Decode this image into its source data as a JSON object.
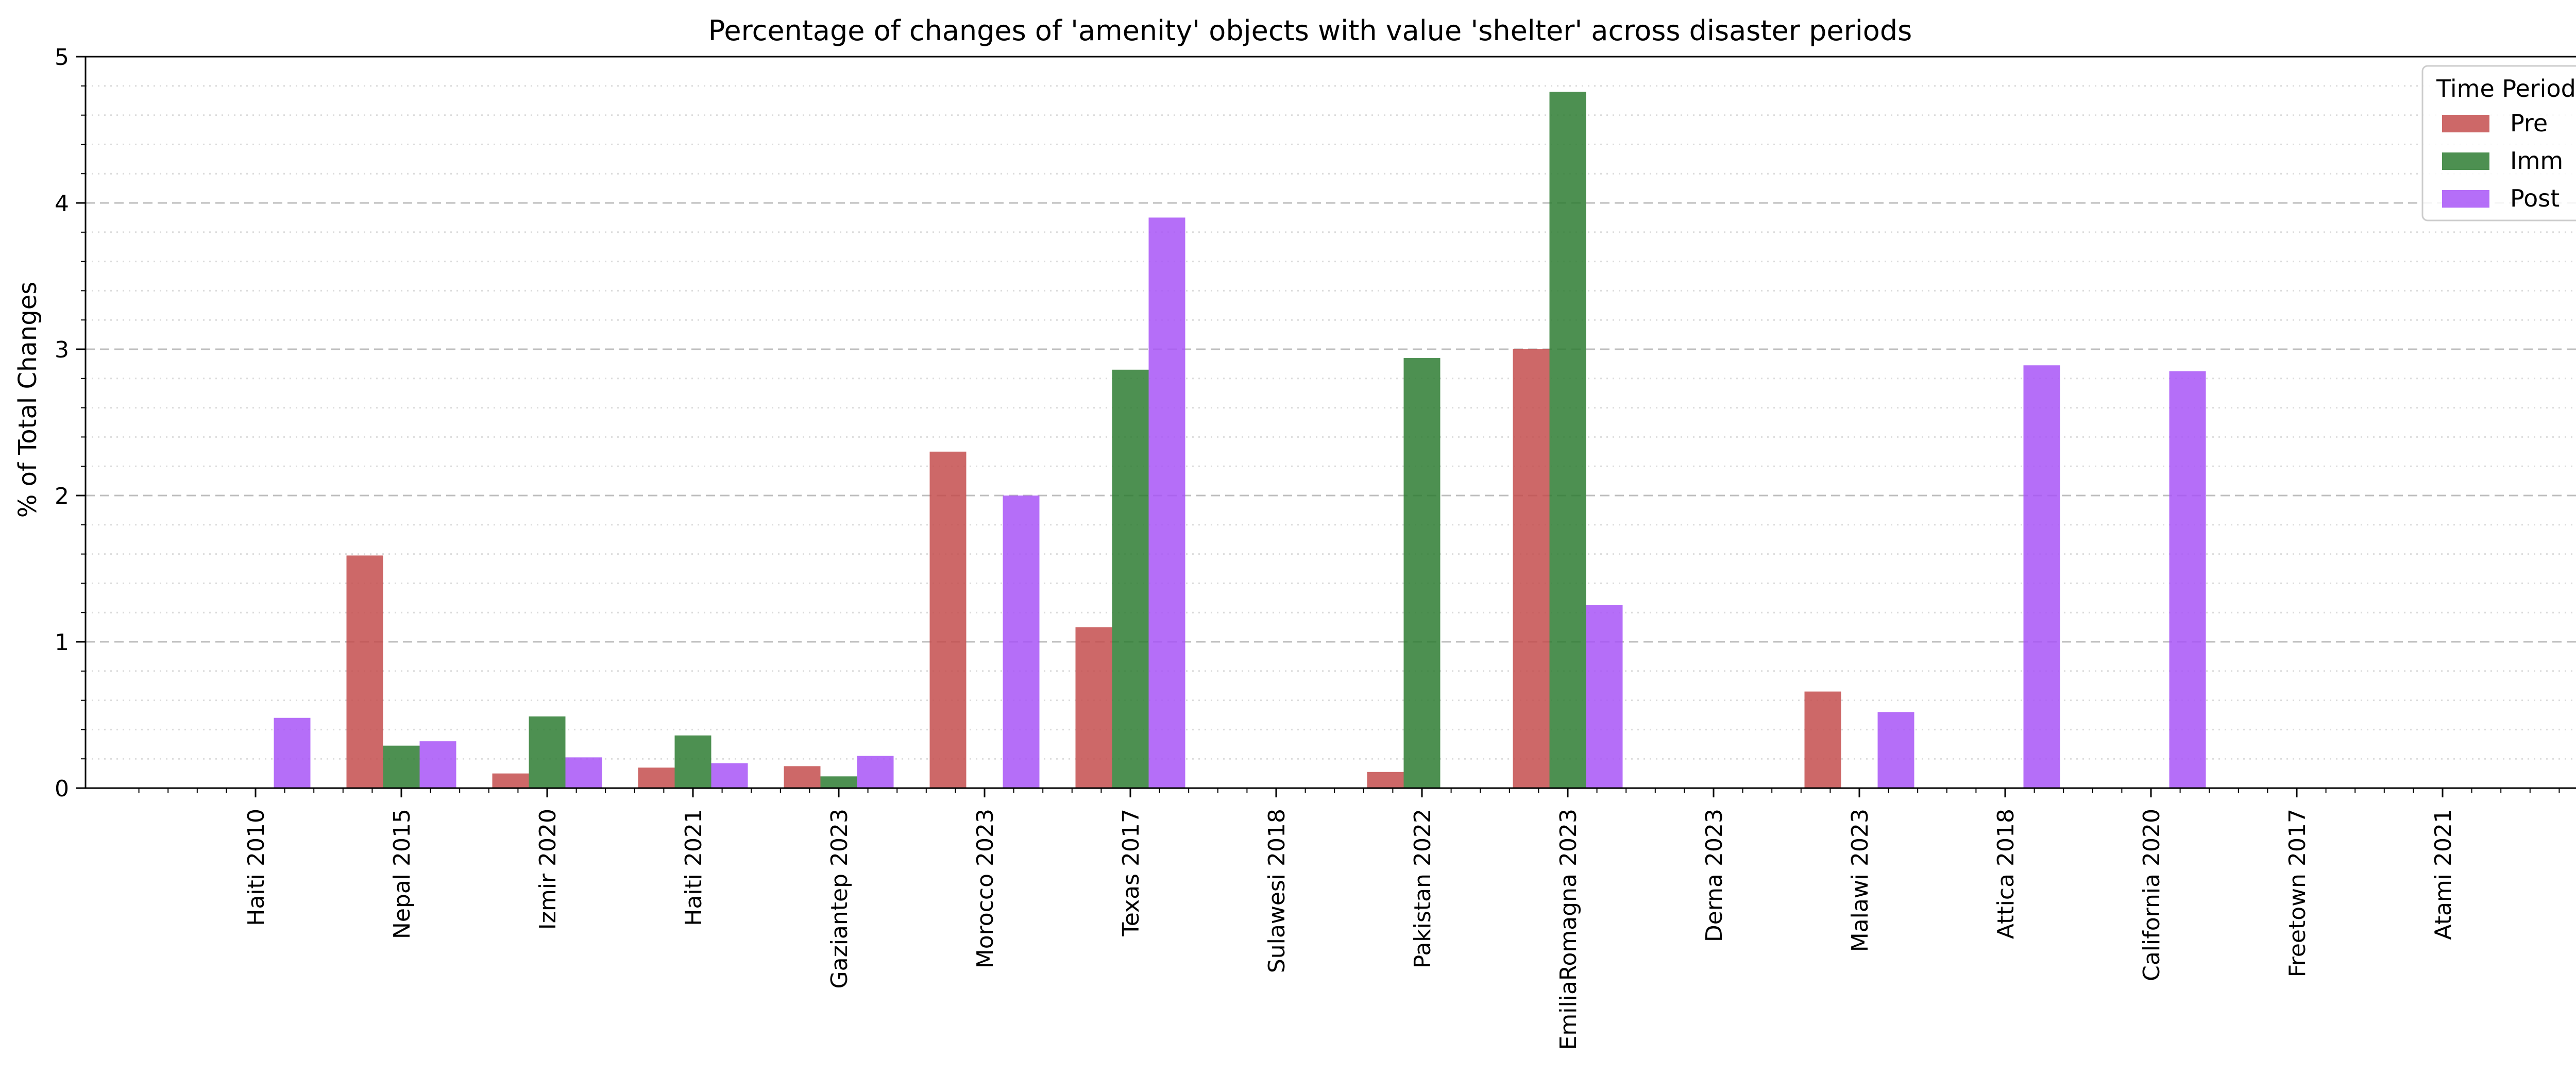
{
  "chart_data": {
    "type": "bar",
    "title": "Percentage of changes of 'amenity' objects with value 'shelter' across disaster periods",
    "xlabel": "",
    "ylabel": "% of Total Changes",
    "ylim": [
      0,
      5
    ],
    "yticks": [
      "0",
      "1",
      "2",
      "3",
      "4",
      "5"
    ],
    "grid": "y",
    "legend": {
      "title": "Time Period",
      "position": "top-right"
    },
    "categories": [
      "Haiti 2010",
      "Nepal 2015",
      "Izmir 2020",
      "Haiti 2021",
      "Gaziantep 2023",
      "Morocco 2023",
      "Texas 2017",
      "Sulawesi 2018",
      "Pakistan 2022",
      "EmiliaRomagna 2023",
      "Derna 2023",
      "Malawi 2023",
      "Attica 2018",
      "California 2020",
      "Freetown 2017",
      "Atami 2021"
    ],
    "series": [
      {
        "name": "Pre",
        "color": "#c44e4e",
        "values": [
          0,
          1.59,
          0.1,
          0.14,
          0.15,
          2.3,
          1.1,
          0,
          0.11,
          3.0,
          0,
          0.66,
          0,
          0,
          0,
          0
        ]
      },
      {
        "name": "Imm",
        "color": "#2e7d32",
        "values": [
          0,
          0.29,
          0.49,
          0.36,
          0.08,
          0,
          2.86,
          0,
          2.94,
          4.76,
          0,
          0,
          0,
          0,
          0,
          0
        ]
      },
      {
        "name": "Post",
        "color": "#a855f7",
        "values": [
          0.48,
          0.32,
          0.21,
          0.17,
          0.22,
          2.0,
          3.9,
          0,
          0,
          1.25,
          0,
          0.52,
          2.89,
          2.85,
          0,
          0
        ]
      }
    ]
  }
}
